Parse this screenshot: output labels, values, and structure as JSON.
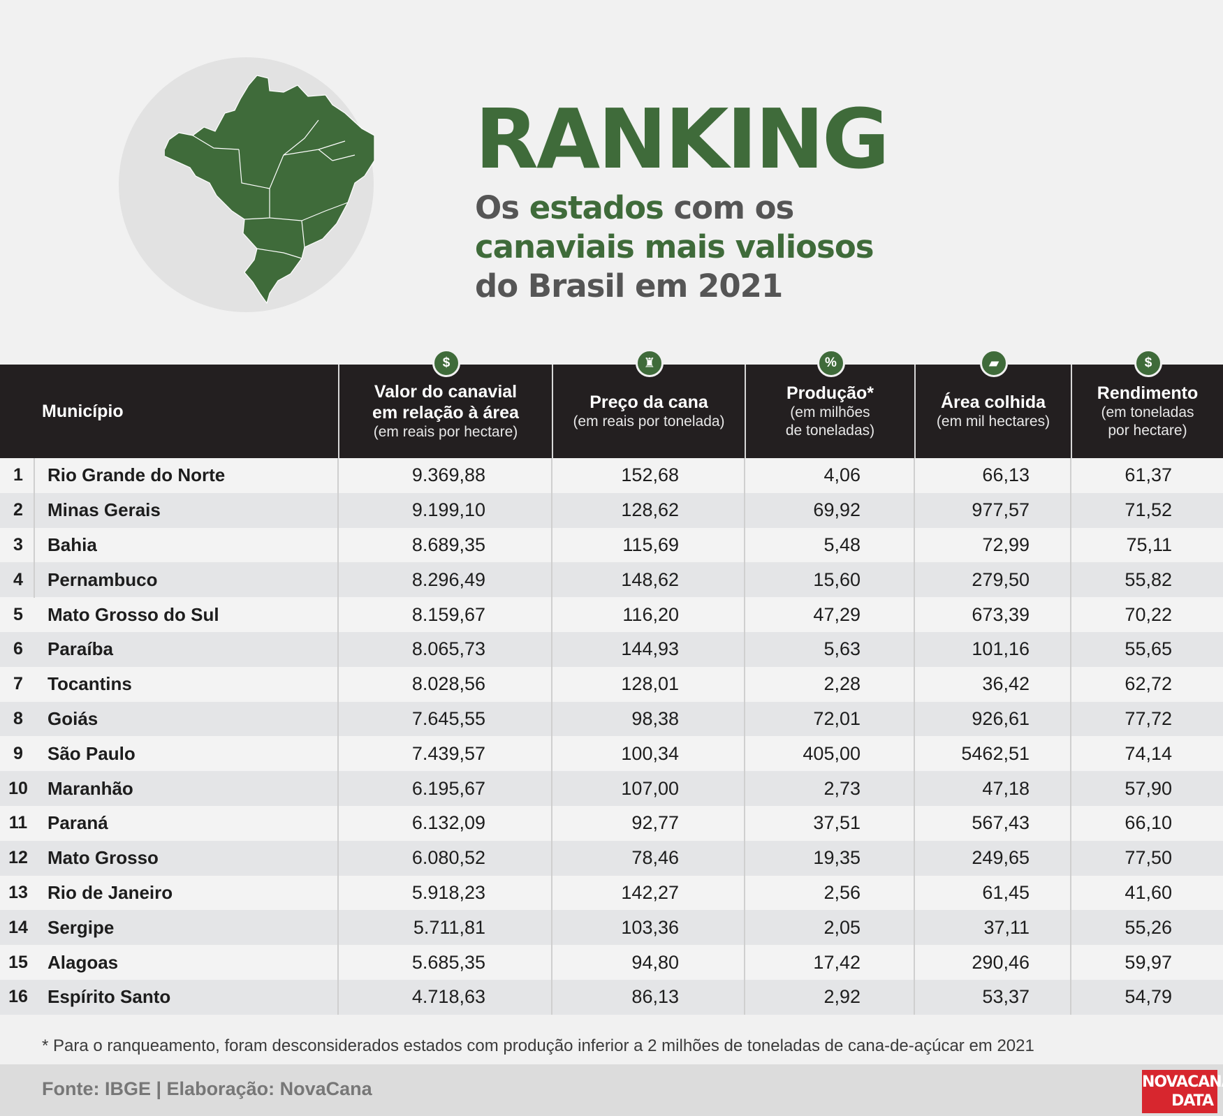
{
  "header": {
    "title": "RANKING",
    "subtitle_line1_a": "Os ",
    "subtitle_line1_b": "estados",
    "subtitle_line1_c": " com os",
    "subtitle_line2": "canaviais mais valiosos",
    "subtitle_line3": "do Brasil em 2021"
  },
  "colors": {
    "brand_green": "#3f6b3a",
    "header_bg": "#231f20",
    "logo_red": "#d7262e"
  },
  "columns": [
    {
      "key": "municipio",
      "title": "Município",
      "sub": "",
      "icon": ""
    },
    {
      "key": "valor",
      "title": "Valor do canavial\nem relação à área",
      "sub": "(em reais por hectare)",
      "icon": "dollar-icon",
      "icon_glyph": "$"
    },
    {
      "key": "preco",
      "title": "Preço da cana",
      "sub": "(em reais por tonelada)",
      "icon": "money-bag-icon",
      "icon_glyph": "♜"
    },
    {
      "key": "producao",
      "title": "Produção*",
      "sub": "(em milhões\nde toneladas)",
      "icon": "percent-icon",
      "icon_glyph": "%"
    },
    {
      "key": "area",
      "title": "Área colhida",
      "sub": "(em mil hectares)",
      "icon": "field-icon",
      "icon_glyph": "▰"
    },
    {
      "key": "rendimento",
      "title": "Rendimento",
      "sub": "(em toneladas\npor hectare)",
      "icon": "dollar-icon",
      "icon_glyph": "$"
    }
  ],
  "chart_data": {
    "type": "table",
    "title": "RANKING",
    "columns": [
      "Município",
      "Valor do canavial em relação à área",
      "Preço da cana",
      "Produção*",
      "Área colhida",
      "Rendimento"
    ],
    "rows": [
      {
        "rank": "1",
        "name": "Rio Grande do Norte",
        "valor": "9.369,88",
        "preco": "152,68",
        "producao": "4,06",
        "area": "66,13",
        "rendimento": "61,37"
      },
      {
        "rank": "2",
        "name": "Minas Gerais",
        "valor": "9.199,10",
        "preco": "128,62",
        "producao": "69,92",
        "area": "977,57",
        "rendimento": "71,52"
      },
      {
        "rank": "3",
        "name": "Bahia",
        "valor": "8.689,35",
        "preco": "115,69",
        "producao": "5,48",
        "area": "72,99",
        "rendimento": "75,11"
      },
      {
        "rank": "4",
        "name": "Pernambuco",
        "valor": "8.296,49",
        "preco": "148,62",
        "producao": "15,60",
        "area": "279,50",
        "rendimento": "55,82"
      },
      {
        "rank": "5",
        "name": "Mato Grosso do Sul",
        "valor": "8.159,67",
        "preco": "116,20",
        "producao": "47,29",
        "area": "673,39",
        "rendimento": "70,22"
      },
      {
        "rank": "6",
        "name": "Paraíba",
        "valor": "8.065,73",
        "preco": "144,93",
        "producao": "5,63",
        "area": "101,16",
        "rendimento": "55,65"
      },
      {
        "rank": "7",
        "name": "Tocantins",
        "valor": "8.028,56",
        "preco": "128,01",
        "producao": "2,28",
        "area": "36,42",
        "rendimento": "62,72"
      },
      {
        "rank": "8",
        "name": "Goiás",
        "valor": "7.645,55",
        "preco": "98,38",
        "producao": "72,01",
        "area": "926,61",
        "rendimento": "77,72"
      },
      {
        "rank": "9",
        "name": "São Paulo",
        "valor": "7.439,57",
        "preco": "100,34",
        "producao": "405,00",
        "area": "5462,51",
        "rendimento": "74,14"
      },
      {
        "rank": "10",
        "name": "Maranhão",
        "valor": "6.195,67",
        "preco": "107,00",
        "producao": "2,73",
        "area": "47,18",
        "rendimento": "57,90"
      },
      {
        "rank": "11",
        "name": "Paraná",
        "valor": "6.132,09",
        "preco": "92,77",
        "producao": "37,51",
        "area": "567,43",
        "rendimento": "66,10"
      },
      {
        "rank": "12",
        "name": "Mato Grosso",
        "valor": "6.080,52",
        "preco": "78,46",
        "producao": "19,35",
        "area": "249,65",
        "rendimento": "77,50"
      },
      {
        "rank": "13",
        "name": "Rio de Janeiro",
        "valor": "5.918,23",
        "preco": "142,27",
        "producao": "2,56",
        "area": "61,45",
        "rendimento": "41,60"
      },
      {
        "rank": "14",
        "name": "Sergipe",
        "valor": "5.711,81",
        "preco": "103,36",
        "producao": "2,05",
        "area": "37,11",
        "rendimento": "55,26"
      },
      {
        "rank": "15",
        "name": "Alagoas",
        "valor": "5.685,35",
        "preco": "94,80",
        "producao": "17,42",
        "area": "290,46",
        "rendimento": "59,97"
      },
      {
        "rank": "16",
        "name": "Espírito Santo",
        "valor": "4.718,63",
        "preco": "86,13",
        "producao": "2,92",
        "area": "53,37",
        "rendimento": "54,79"
      }
    ]
  },
  "footnote": "* Para o ranqueamento, foram desconsiderados estados com produção inferior a 2 milhões de toneladas de cana-de-açúcar em 2021",
  "source": "Fonte: IBGE | Elaboração: NovaCana",
  "logo": {
    "line1": "NOVACANA",
    "line2": "DATA"
  }
}
